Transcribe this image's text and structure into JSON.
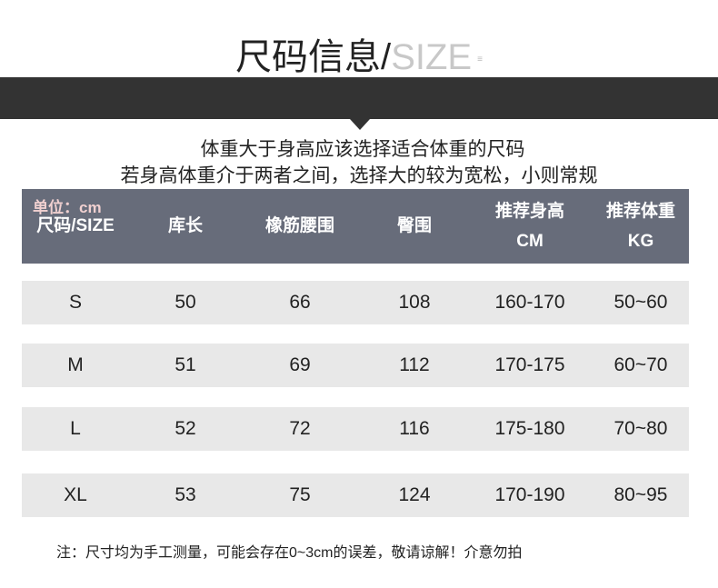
{
  "title": {
    "cn": "尺码信息/",
    "en": "SIZE",
    "mark": "≡"
  },
  "notes": [
    "体重大于身高应该选择适合体重的尺码",
    "若身高体重介于两者之间，选择大的较为宽松，小则常规"
  ],
  "table": {
    "unit": "单位：cm",
    "headers": [
      {
        "line1": "尺码/SIZE",
        "line2": ""
      },
      {
        "line1": "库长",
        "line2": ""
      },
      {
        "line1": "橡筋腰围",
        "line2": ""
      },
      {
        "line1": "臀围",
        "line2": ""
      },
      {
        "line1": "推荐身高",
        "line2": "CM"
      },
      {
        "line1": "推荐体重",
        "line2": "KG"
      }
    ],
    "rows": [
      [
        "S",
        "50",
        "66",
        "108",
        "160-170",
        "50~60"
      ],
      [
        "M",
        "51",
        "69",
        "112",
        "170-175",
        "60~70"
      ],
      [
        "L",
        "52",
        "72",
        "116",
        "175-180",
        "70~80"
      ],
      [
        "XL",
        "53",
        "75",
        "124",
        "170-190",
        "80~95"
      ]
    ]
  },
  "footnote": "注：尺寸均为手工测量，可能会存在0~3cm的误差，敬请谅解！介意勿拍",
  "colors": {
    "band": "#333333",
    "header": "#676c7a",
    "row": "#e8e8e8"
  }
}
